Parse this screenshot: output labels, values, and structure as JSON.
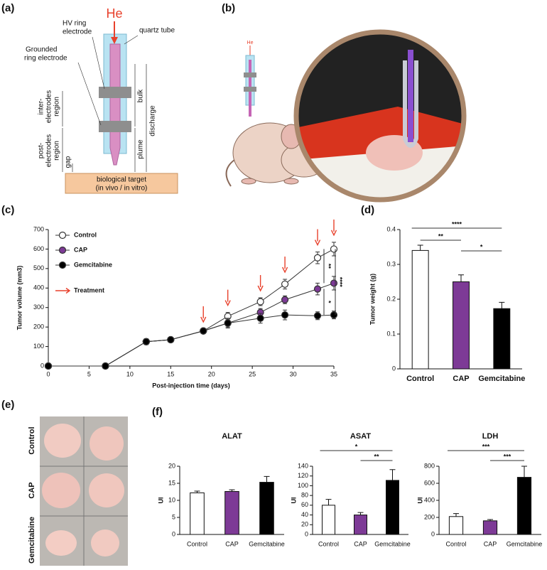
{
  "panels": [
    "(a)",
    "(b)",
    "(c)",
    "(d)",
    "(e)",
    "(f)"
  ],
  "diagram": {
    "gas": "He",
    "hv_electrode": [
      "HV ring",
      "electrode"
    ],
    "quartz_tube": "quartz tube",
    "grounded_electrode": [
      "Grounded",
      "ring electrode"
    ],
    "inter_region": [
      "inter-",
      "electrodes",
      "region"
    ],
    "post_region": [
      "post-",
      "electrodes",
      "region"
    ],
    "gap": "gap",
    "plume": "plume",
    "bulk": "bulk",
    "discharge": "discharge",
    "target": [
      "biological target",
      "(in vivo / in vitro)"
    ]
  },
  "mouse_gas": "He",
  "photo_labels": [
    "Control",
    "CAP",
    "Gemcitabine"
  ],
  "chart_data": [
    {
      "type": "line",
      "xlabel": "Post-injection time (days)",
      "ylabel": "Tumor volume (mm3)",
      "x": [
        0,
        7,
        12,
        15,
        19,
        22,
        26,
        29,
        33,
        35
      ],
      "series": [
        {
          "name": "Control",
          "color": "#ffffff",
          "values": [
            0,
            0,
            125,
            135,
            180,
            255,
            330,
            420,
            555,
            600
          ],
          "errors": [
            0,
            0,
            15,
            10,
            10,
            20,
            20,
            25,
            30,
            35
          ]
        },
        {
          "name": "CAP",
          "color": "#7d3a96",
          "values": [
            0,
            0,
            125,
            135,
            180,
            220,
            275,
            340,
            395,
            425
          ],
          "errors": [
            0,
            0,
            15,
            10,
            10,
            20,
            20,
            20,
            30,
            35
          ]
        },
        {
          "name": "Gemcitabine",
          "color": "#000000",
          "values": [
            0,
            0,
            125,
            135,
            180,
            220,
            245,
            262,
            258,
            262
          ],
          "errors": [
            0,
            0,
            15,
            10,
            10,
            25,
            25,
            25,
            20,
            20
          ]
        }
      ],
      "treatment": {
        "name": "Treatment",
        "color": "#e8412c",
        "x": [
          19,
          22,
          26,
          29,
          33,
          35
        ]
      },
      "xlim": [
        0,
        35
      ],
      "xticks": [
        0,
        5,
        10,
        15,
        20,
        25,
        30,
        35
      ],
      "ylim": [
        0,
        700
      ],
      "yticks": [
        0,
        100,
        200,
        300,
        400,
        500,
        600,
        700
      ],
      "annotations": [
        "**",
        "****",
        "*"
      ]
    },
    {
      "type": "bar",
      "ylabel": "Tumor weight (g)",
      "categories": [
        "Control",
        "CAP",
        "Gemcitabine"
      ],
      "values": [
        0.34,
        0.25,
        0.173
      ],
      "errors": [
        0.015,
        0.02,
        0.018
      ],
      "colors": [
        "#ffffff",
        "#7d3a96",
        "#000000"
      ],
      "ylim": [
        0,
        0.4
      ],
      "yticks": [
        0,
        0.1,
        0.2,
        0.3,
        0.4
      ],
      "annotations": [
        "****",
        "**",
        "*"
      ]
    },
    {
      "type": "bar",
      "title": "ALAT",
      "ylabel": "UI",
      "categories": [
        "Control",
        "CAP",
        "Gemcitabine"
      ],
      "values": [
        12.2,
        12.6,
        15.3
      ],
      "errors": [
        0.5,
        0.5,
        1.7
      ],
      "colors": [
        "#ffffff",
        "#7d3a96",
        "#000000"
      ],
      "ylim": [
        0,
        20
      ],
      "yticks": [
        0,
        5,
        10,
        15,
        20
      ]
    },
    {
      "type": "bar",
      "title": "ASAT",
      "ylabel": "UI",
      "categories": [
        "Control",
        "CAP",
        "Gemcitabine"
      ],
      "values": [
        60,
        40,
        111
      ],
      "errors": [
        12,
        5,
        22
      ],
      "colors": [
        "#ffffff",
        "#7d3a96",
        "#000000"
      ],
      "ylim": [
        0,
        140
      ],
      "yticks": [
        0,
        20,
        40,
        60,
        80,
        100,
        120,
        140
      ],
      "annotations": [
        "*",
        "**"
      ]
    },
    {
      "type": "bar",
      "title": "LDH",
      "ylabel": "UI",
      "categories": [
        "Control",
        "CAP",
        "Gemcitabine"
      ],
      "values": [
        210,
        160,
        670
      ],
      "errors": [
        35,
        15,
        130
      ],
      "colors": [
        "#ffffff",
        "#7d3a96",
        "#000000"
      ],
      "ylim": [
        0,
        800
      ],
      "yticks": [
        0,
        200,
        400,
        600,
        800
      ],
      "annotations": [
        "***",
        "***"
      ]
    }
  ]
}
